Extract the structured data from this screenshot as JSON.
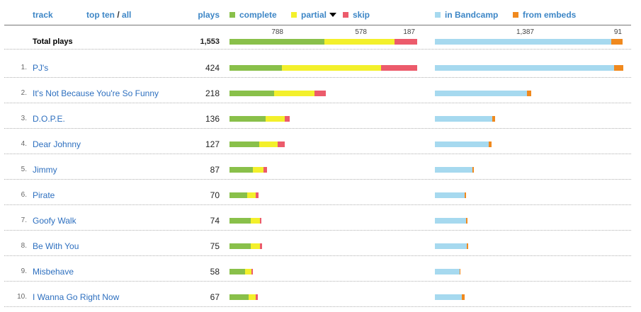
{
  "header": {
    "track": "track",
    "top_ten": "top ten",
    "slash": "/",
    "all": "all",
    "plays": "plays",
    "complete": "complete",
    "partial": "partial",
    "skip": "skip",
    "in_bandcamp": "in Bandcamp",
    "from_embeds": "from embeds"
  },
  "colors": {
    "complete": "#89c04a",
    "partial": "#f3f02b",
    "skip": "#ec5b6b",
    "in_bandcamp": "#a6d9ef",
    "from_embeds": "#f0891e"
  },
  "total": {
    "label": "Total plays",
    "plays": "1,553",
    "complete": 788,
    "partial": 578,
    "skip": 187,
    "bandcamp": 1387,
    "embeds": 91,
    "complete_label": "788",
    "partial_label": "578",
    "skip_label": "187",
    "bandcamp_label": "1,387",
    "embeds_label": "91"
  },
  "tracks": [
    {
      "num": "1.",
      "title": "PJ's",
      "plays": "424",
      "complete": 111,
      "partial": 211,
      "skip": 76,
      "bandcamp": 404,
      "embeds": 20
    },
    {
      "num": "2.",
      "title": "It's Not Because You're So Funny",
      "plays": "218",
      "complete": 94,
      "partial": 86,
      "skip": 24,
      "bandcamp": 208,
      "embeds": 10
    },
    {
      "num": "3.",
      "title": "D.O.P.E.",
      "plays": "136",
      "complete": 77,
      "partial": 41,
      "skip": 11,
      "bandcamp": 130,
      "embeds": 6
    },
    {
      "num": "4.",
      "title": "Dear Johnny",
      "plays": "127",
      "complete": 63,
      "partial": 39,
      "skip": 15,
      "bandcamp": 121,
      "embeds": 6
    },
    {
      "num": "5.",
      "title": "Jimmy",
      "plays": "87",
      "complete": 49,
      "partial": 23,
      "skip": 7,
      "bandcamp": 84,
      "embeds": 3
    },
    {
      "num": "6.",
      "title": "Pirate",
      "plays": "70",
      "complete": 38,
      "partial": 18,
      "skip": 6,
      "bandcamp": 67,
      "embeds": 3
    },
    {
      "num": "7.",
      "title": "Goofy Walk",
      "plays": "74",
      "complete": 45,
      "partial": 20,
      "skip": 3,
      "bandcamp": 71,
      "embeds": 3
    },
    {
      "num": "8.",
      "title": "Be With You",
      "plays": "75",
      "complete": 45,
      "partial": 20,
      "skip": 4,
      "bandcamp": 72,
      "embeds": 3
    },
    {
      "num": "9.",
      "title": "Misbehave",
      "plays": "58",
      "complete": 33,
      "partial": 14,
      "skip": 3,
      "bandcamp": 56,
      "embeds": 2
    },
    {
      "num": "10.",
      "title": "I Wanna Go Right Now",
      "plays": "67",
      "complete": 41,
      "partial": 15,
      "skip": 4,
      "bandcamp": 61,
      "embeds": 6
    }
  ]
}
